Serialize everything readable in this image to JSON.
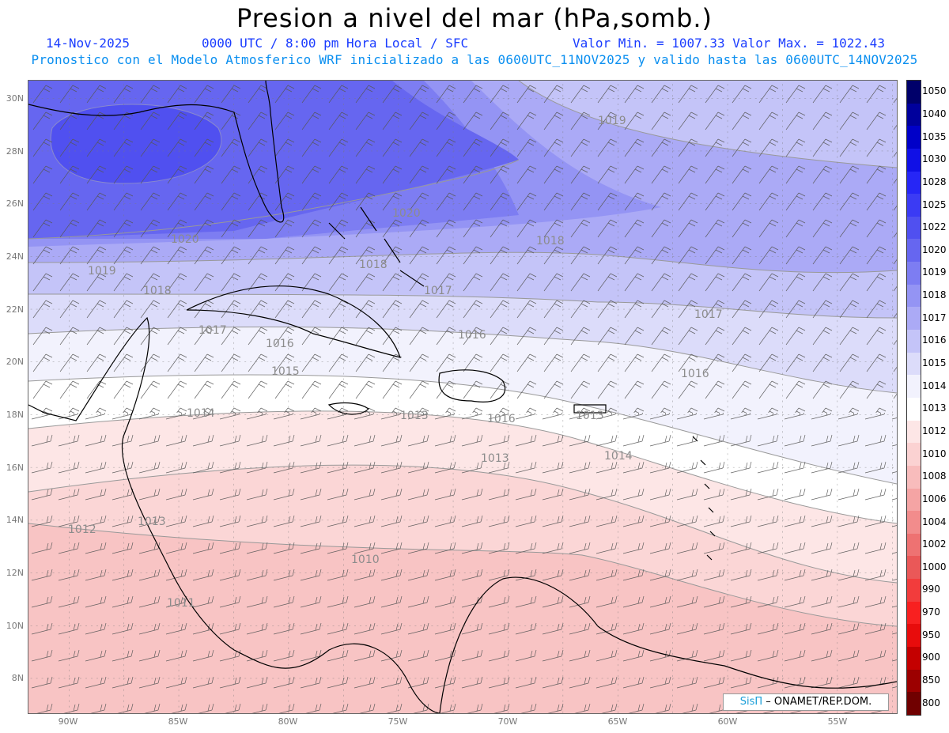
{
  "title": "Presion a nivel del mar (hPa,somb.)",
  "date": "14-Nov-2025",
  "time": "0000 UTC / 8:00 pm Hora Local / SFC",
  "min_max": "Valor Min. = 1007.33  Valor Max. = 1022.43",
  "forecast_line": "Pronostico con el Modelo Atmosferico WRF inicializado a las 0600UTC_11NOV2025 y valido hasta las  0600UTC_14NOV2025",
  "credit_brand": "SisΠ",
  "credit_text": " – ONAMET/REP.DOM.",
  "lat_labels": [
    "30N",
    "28N",
    "26N",
    "24N",
    "22N",
    "20N",
    "18N",
    "16N",
    "14N",
    "12N",
    "10N",
    "8N"
  ],
  "lon_labels": [
    "90W",
    "85W",
    "80W",
    "75W",
    "70W",
    "65W",
    "60W",
    "55W"
  ],
  "colorbar": {
    "labels": [
      "1050",
      "1040",
      "1035",
      "1030",
      "1028",
      "1025",
      "1022",
      "1020",
      "1019",
      "1018",
      "1017",
      "1016",
      "1015",
      "1014",
      "1013",
      "1012",
      "1010",
      "1008",
      "1006",
      "1004",
      "1002",
      "1000",
      "990",
      "970",
      "950",
      "900",
      "850",
      "800"
    ],
    "colors": [
      "#00006a",
      "#00009c",
      "#0000c8",
      "#1010e6",
      "#2626f6",
      "#3b3bf4",
      "#5050f0",
      "#6666f0",
      "#7d7df2",
      "#9494f4",
      "#abaaf6",
      "#c4c4f8",
      "#dcdcfa",
      "#f2f2fd",
      "#ffffff",
      "#fde6e6",
      "#fbd2d2",
      "#f8bcbc",
      "#f5a4a4",
      "#f28c8c",
      "#ee7272",
      "#ea5858",
      "#f23c3c",
      "#f82020",
      "#e80c0c",
      "#c40000",
      "#9c0000",
      "#700000"
    ]
  },
  "isobar_labels": [
    "1019",
    "1020",
    "1020",
    "1019",
    "1018",
    "1018",
    "1017",
    "1016",
    "1016",
    "1018",
    "1017",
    "1017",
    "1016",
    "1015",
    "1016",
    "1014",
    "1013",
    "1013",
    "1014",
    "1012",
    "1011",
    "1010",
    "1013",
    "1013"
  ],
  "colors": {
    "header_blue": "#1a3cff",
    "forecast_cyan": "#0a8ff0"
  }
}
